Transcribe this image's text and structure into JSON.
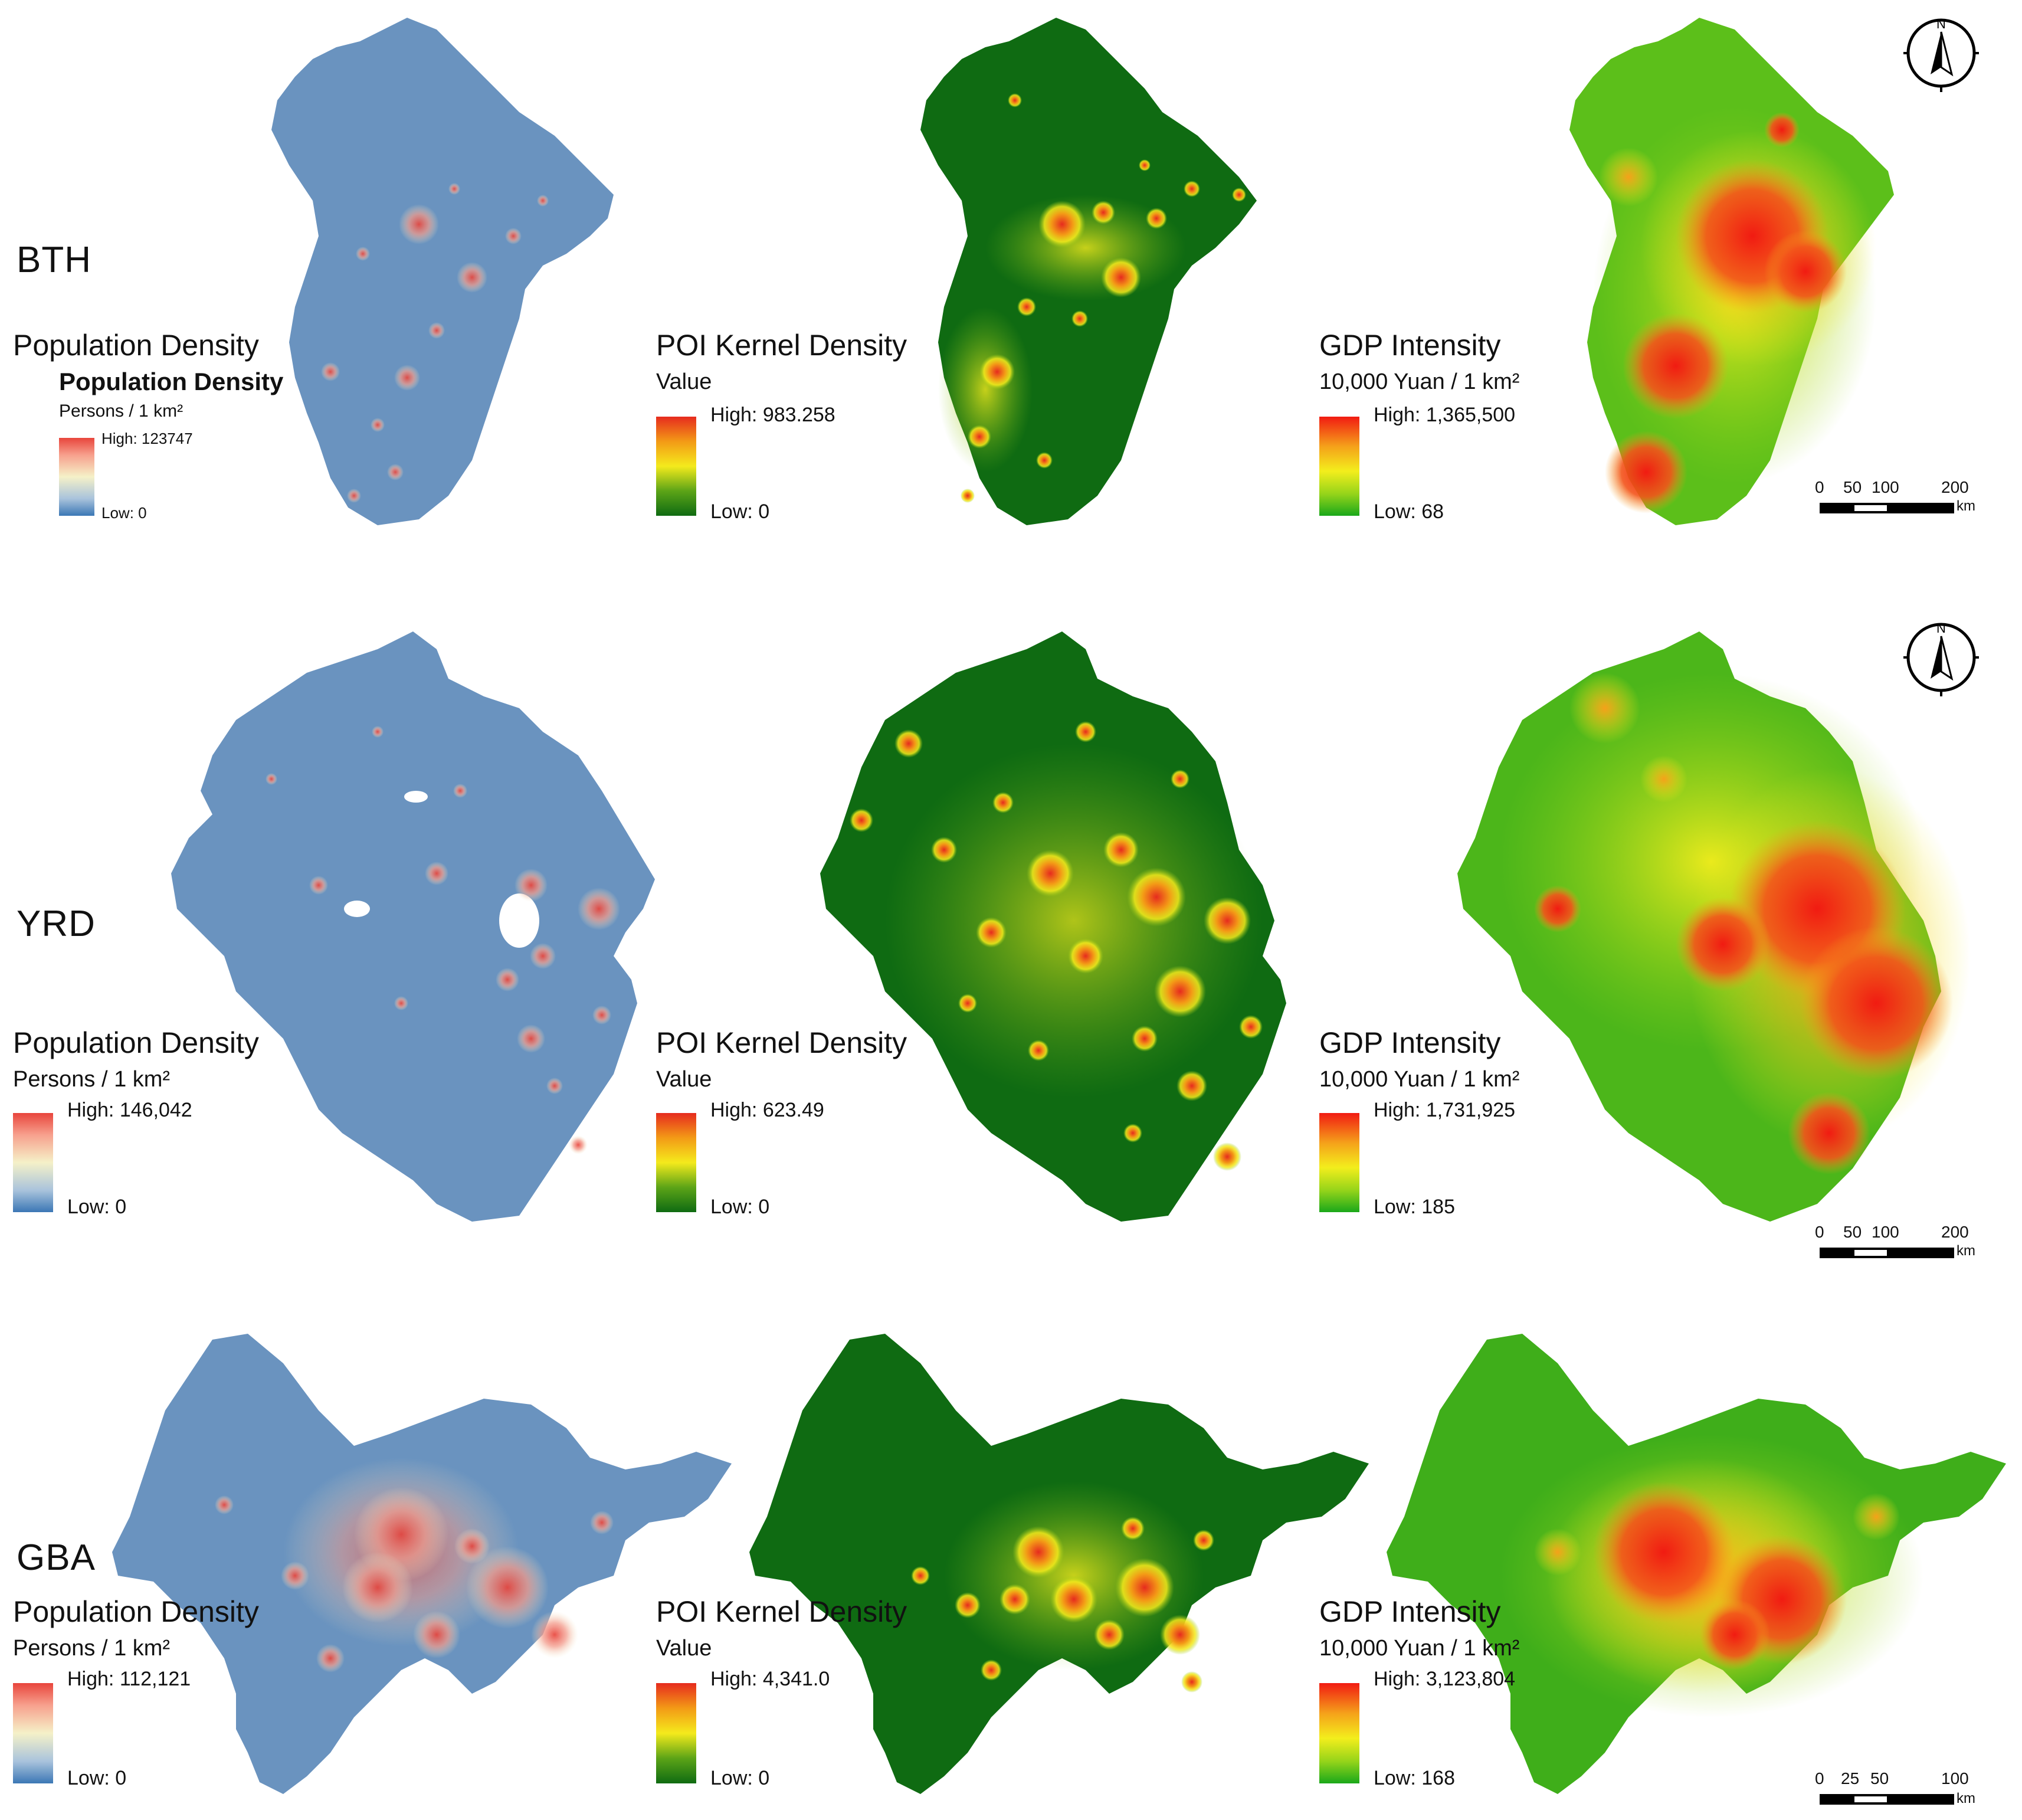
{
  "colors": {
    "pop_base": "#6a93bf",
    "pop_hot": "#e8453c",
    "pop_warm": "#f5e9c8",
    "poi_base": "#0f6b12",
    "poi_mid": "#f4ea1c",
    "poi_hot": "#e62b1e",
    "gdp_low": "#1aa81a",
    "gdp_mid": "#f3ee1c",
    "gdp_high": "#f11b12"
  },
  "rows": [
    {
      "region": "BTH",
      "pop": {
        "title": "Population Density",
        "title2": "Population Density",
        "unit": "Persons / 1 km²",
        "high": "High: 123747",
        "low": "Low: 0"
      },
      "poi": {
        "title": "POI Kernel Density",
        "unit": "Value",
        "high": "High: 983.258",
        "low": "Low: 0"
      },
      "gdp": {
        "title": "GDP Intensity",
        "unit": "10,000 Yuan / 1 km²",
        "high": "High: 1,365,500",
        "low": "Low: 68"
      },
      "scale": {
        "ticks": [
          "0",
          "50",
          "100",
          "200"
        ],
        "unit": "km"
      }
    },
    {
      "region": "YRD",
      "pop": {
        "title": "Population Density",
        "unit": "Persons / 1 km²",
        "high": "High: 146,042",
        "low": "Low: 0"
      },
      "poi": {
        "title": "POI Kernel Density",
        "unit": "Value",
        "high": "High: 623.49",
        "low": "Low: 0"
      },
      "gdp": {
        "title": "GDP Intensity",
        "unit": "10,000 Yuan / 1 km²",
        "high": "High: 1,731,925",
        "low": "Low: 185"
      },
      "scale": {
        "ticks": [
          "0",
          "50",
          "100",
          "200"
        ],
        "unit": "km"
      }
    },
    {
      "region": "GBA",
      "pop": {
        "title": "Population Density",
        "unit": "Persons / 1 km²",
        "high": "High: 112,121",
        "low": "Low: 0"
      },
      "poi": {
        "title": "POI Kernel Density",
        "unit": "Value",
        "high": "High: 4,341.0",
        "low": "Low: 0"
      },
      "gdp": {
        "title": "GDP Intensity",
        "unit": "10,000 Yuan / 1 km²",
        "high": "High: 3,123,804",
        "low": "Low: 168"
      },
      "scale": {
        "ticks": [
          "0",
          "25",
          "50",
          "100"
        ],
        "unit": "km"
      }
    }
  ],
  "north_label": "N"
}
